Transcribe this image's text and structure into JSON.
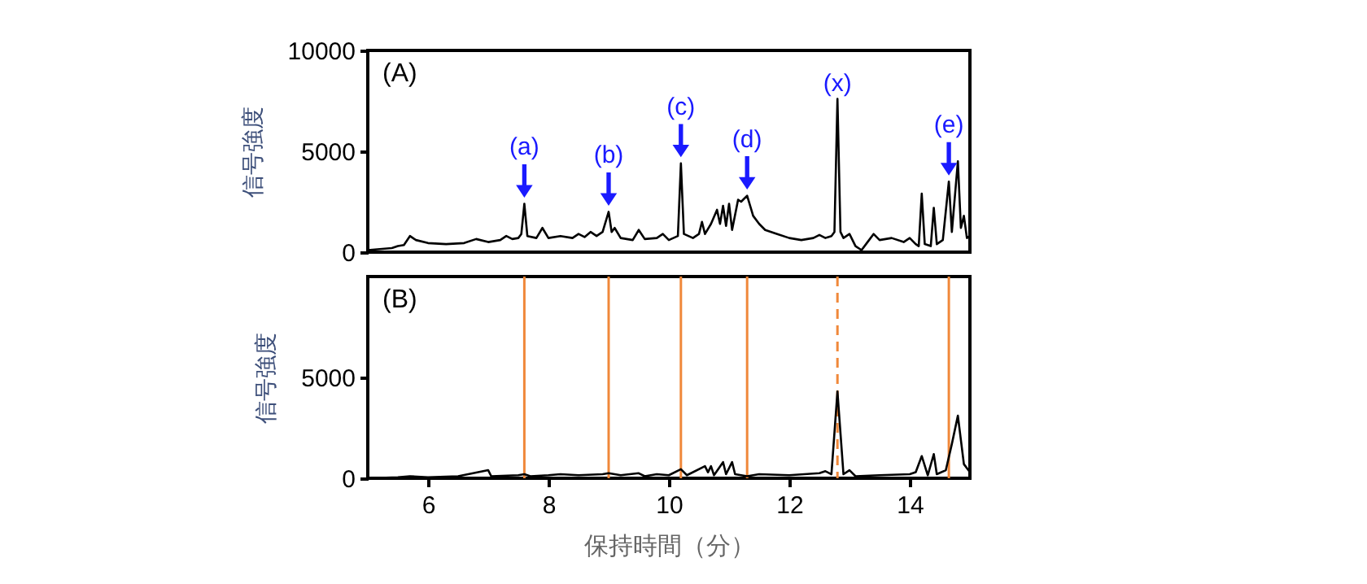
{
  "chart_data": [
    {
      "type": "line",
      "ylabel": "信号強度",
      "xlim": [
        5,
        15
      ],
      "ylim": [
        0,
        10000
      ],
      "yticks": [
        0,
        5000,
        10000
      ],
      "tick_labels": "y",
      "grid": false,
      "annotations": [
        "(A)",
        {
          "text": "(a)",
          "x": 7.6,
          "y": 2400
        },
        {
          "text": "(b)",
          "x": 9.0,
          "y": 2000
        },
        {
          "text": "(c)",
          "x": 10.2,
          "y": 4400
        },
        {
          "text": "(d)",
          "x": 11.3,
          "y": 2800
        },
        {
          "text": "(x)",
          "x": 12.8,
          "y": 7600
        },
        {
          "text": "(e)",
          "x": 14.65,
          "y": 3500
        }
      ],
      "series": [
        {
          "color": "#000000",
          "x": [
            5.0,
            5.2,
            5.4,
            5.5,
            5.6,
            5.7,
            5.8,
            6.0,
            6.3,
            6.6,
            6.8,
            7.0,
            7.2,
            7.3,
            7.4,
            7.5,
            7.55,
            7.6,
            7.65,
            7.8,
            7.9,
            8.0,
            8.2,
            8.4,
            8.5,
            8.6,
            8.7,
            8.8,
            8.9,
            9.0,
            9.05,
            9.1,
            9.2,
            9.4,
            9.5,
            9.6,
            9.8,
            9.9,
            10.0,
            10.15,
            10.2,
            10.25,
            10.4,
            10.5,
            10.55,
            10.6,
            10.7,
            10.8,
            10.85,
            10.9,
            10.95,
            11.0,
            11.05,
            11.15,
            11.2,
            11.3,
            11.4,
            11.5,
            11.6,
            11.8,
            12.0,
            12.2,
            12.4,
            12.5,
            12.6,
            12.7,
            12.75,
            12.8,
            12.85,
            12.9,
            13.0,
            13.1,
            13.2,
            13.3,
            13.4,
            13.5,
            13.7,
            13.9,
            14.0,
            14.1,
            14.15,
            14.2,
            14.25,
            14.35,
            14.4,
            14.45,
            14.55,
            14.65,
            14.7,
            14.8,
            14.85,
            14.9,
            14.95,
            15.0
          ],
          "values": [
            100,
            150,
            200,
            300,
            350,
            800,
            600,
            450,
            400,
            450,
            650,
            500,
            600,
            800,
            650,
            700,
            900,
            2400,
            800,
            700,
            1200,
            700,
            800,
            700,
            900,
            750,
            1000,
            800,
            1000,
            2000,
            1000,
            1200,
            700,
            600,
            1100,
            650,
            700,
            900,
            600,
            800,
            4400,
            900,
            700,
            900,
            1500,
            900,
            1400,
            2100,
            1400,
            2300,
            1300,
            2400,
            1100,
            2600,
            2500,
            2800,
            1800,
            1400,
            1100,
            900,
            700,
            600,
            700,
            850,
            700,
            800,
            1000,
            7600,
            1000,
            700,
            900,
            300,
            100,
            500,
            900,
            600,
            700,
            500,
            700,
            400,
            300,
            2900,
            400,
            300,
            2200,
            400,
            600,
            3500,
            1000,
            4500,
            1200,
            1800,
            700,
            800
          ]
        }
      ]
    },
    {
      "type": "line",
      "xlabel": "保持時間（分）",
      "ylabel": "信号強度",
      "xlim": [
        5,
        15
      ],
      "xticks": [
        6,
        8,
        10,
        12,
        14
      ],
      "ylim": [
        0,
        10000
      ],
      "yticks": [
        0,
        5000
      ],
      "grid": false,
      "annotations": [
        "(B)"
      ],
      "ref_lines": [
        {
          "axis": "x",
          "value": 7.6,
          "color": "#f0883a",
          "line_style": "solid"
        },
        {
          "axis": "x",
          "value": 9.0,
          "color": "#f0883a",
          "line_style": "solid"
        },
        {
          "axis": "x",
          "value": 10.2,
          "color": "#f0883a",
          "line_style": "solid"
        },
        {
          "axis": "x",
          "value": 11.3,
          "color": "#f0883a",
          "line_style": "solid"
        },
        {
          "axis": "x",
          "value": 12.8,
          "color": "#f0883a",
          "line_style": "dashed"
        },
        {
          "axis": "x",
          "value": 14.65,
          "color": "#f0883a",
          "line_style": "solid"
        }
      ],
      "series": [
        {
          "color": "#000000",
          "x": [
            5.0,
            5.5,
            5.7,
            6.0,
            6.5,
            7.0,
            7.05,
            7.5,
            7.6,
            7.7,
            8.0,
            8.2,
            8.5,
            8.9,
            9.0,
            9.2,
            9.5,
            9.6,
            9.8,
            10.0,
            10.2,
            10.3,
            10.6,
            10.65,
            10.7,
            10.75,
            10.9,
            10.95,
            11.05,
            11.1,
            11.3,
            11.5,
            12.0,
            12.5,
            12.6,
            12.7,
            12.8,
            12.9,
            13.0,
            13.1,
            13.5,
            14.0,
            14.1,
            14.2,
            14.3,
            14.4,
            14.45,
            14.6,
            14.7,
            14.8,
            14.9,
            15.0
          ],
          "values": [
            0,
            50,
            100,
            50,
            100,
            400,
            100,
            150,
            200,
            100,
            150,
            200,
            150,
            200,
            250,
            150,
            250,
            100,
            200,
            150,
            450,
            150,
            600,
            300,
            600,
            150,
            800,
            200,
            800,
            200,
            100,
            200,
            150,
            250,
            350,
            200,
            4300,
            200,
            400,
            100,
            150,
            200,
            300,
            1100,
            150,
            1200,
            200,
            400,
            1700,
            3100,
            700,
            300
          ]
        }
      ]
    }
  ]
}
